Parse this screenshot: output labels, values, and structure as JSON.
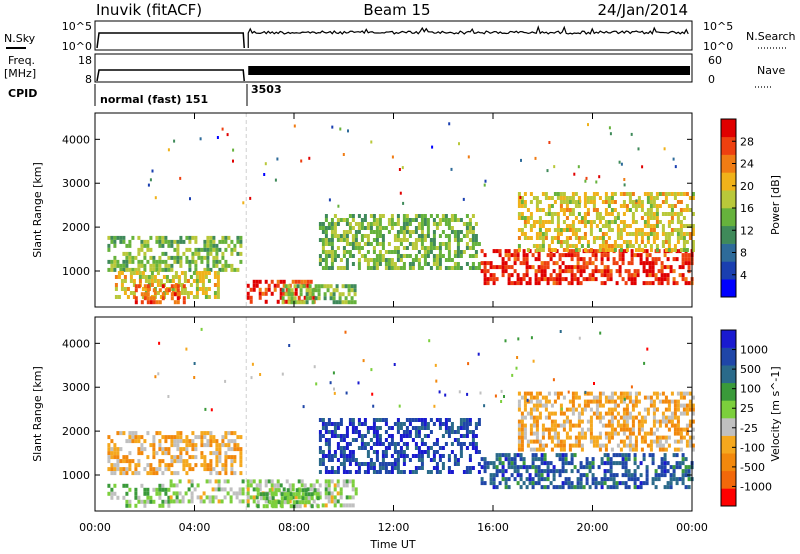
{
  "header": {
    "station": "Inuvik (fitACF)",
    "beam": "Beam 15",
    "date": "24/Jan/2014"
  },
  "top_panels": {
    "nsky_label": "N.Sky",
    "nsky_ticks": [
      "10^5",
      "10^0"
    ],
    "nsearch_label": "N.Search",
    "nsearch_ticks": [
      "10^5",
      "10^0"
    ],
    "freq_label": "Freq.",
    "freq_unit": "[MHz]",
    "freq_ticks": [
      "18",
      "8"
    ],
    "nave_label": "Nave",
    "nave_ticks": [
      "60",
      "0"
    ],
    "cpid_label": "CPID",
    "cpid_segments": [
      {
        "start_h": 0.0,
        "end_h": 6.08,
        "label": "normal (fast) 151"
      },
      {
        "start_h": 6.08,
        "end_h": 24.0,
        "label": "3503"
      }
    ]
  },
  "colors": {
    "power": [
      "#0000ff",
      "#1a3fb0",
      "#2e6b9a",
      "#3f8a5a",
      "#66b23c",
      "#b9c83a",
      "#f0b21a",
      "#f07c14",
      "#ee4010",
      "#e00000"
    ],
    "velocity": [
      "#ff0000",
      "#f2680a",
      "#f2880c",
      "#f5a81e",
      "#c0c0c0",
      "#7ccf3c",
      "#3a9a3a",
      "#2a6a8a",
      "#1f46a8",
      "#1a1ad0"
    ]
  },
  "chart_data": [
    {
      "type": "heatmap",
      "title": "",
      "xlabel": "Time UT",
      "ylabel": "Slant Range [km]",
      "xlim_h": [
        0,
        24
      ],
      "ylim": [
        180,
        4600
      ],
      "x_ticks": [
        "00:00",
        "04:00",
        "08:00",
        "12:00",
        "16:00",
        "20:00",
        "00:00"
      ],
      "y_ticks": [
        1000,
        2000,
        3000,
        4000
      ],
      "colorbar": {
        "label": "Power [dB]",
        "ticks": [
          "28",
          "24",
          "20",
          "16",
          "12",
          "8",
          "4"
        ],
        "range": [
          0,
          30
        ]
      },
      "regions": [
        {
          "t0": 0.5,
          "t1": 5.9,
          "r0": 1000,
          "r1": 1800,
          "value": 14
        },
        {
          "t0": 0.8,
          "t1": 5.0,
          "r0": 400,
          "r1": 1000,
          "value": 18
        },
        {
          "t0": 1.6,
          "t1": 3.6,
          "r0": 300,
          "r1": 700,
          "value": 25
        },
        {
          "t0": 6.1,
          "t1": 8.8,
          "r0": 300,
          "r1": 800,
          "value": 26
        },
        {
          "t0": 7.5,
          "t1": 10.5,
          "r0": 300,
          "r1": 700,
          "value": 14
        },
        {
          "t0": 9.0,
          "t1": 15.5,
          "r0": 1100,
          "r1": 2300,
          "value": 14
        },
        {
          "t0": 15.5,
          "t1": 24.0,
          "r0": 700,
          "r1": 1500,
          "value": 27
        },
        {
          "t0": 17.0,
          "t1": 24.0,
          "r0": 1500,
          "r1": 2800,
          "value": 18
        }
      ]
    },
    {
      "type": "heatmap",
      "title": "",
      "xlabel": "Time UT",
      "ylabel": "Slant Range [km]",
      "xlim_h": [
        0,
        24
      ],
      "ylim": [
        180,
        4600
      ],
      "x_ticks": [
        "00:00",
        "04:00",
        "08:00",
        "12:00",
        "16:00",
        "20:00",
        "00:00"
      ],
      "y_ticks": [
        1000,
        2000,
        3000,
        4000
      ],
      "colorbar": {
        "label": "Velocity [m s^-1]",
        "ticks": [
          "1000",
          "500",
          "100",
          "25",
          "-25",
          "-100",
          "-500",
          "-1000"
        ],
        "range": [
          -1000,
          1000
        ]
      },
      "regions": [
        {
          "t0": 0.5,
          "t1": 5.9,
          "r0": 1000,
          "r1": 2000,
          "value": -300
        },
        {
          "t0": 0.5,
          "t1": 3.0,
          "r0": 300,
          "r1": 800,
          "value": 150
        },
        {
          "t0": 3.0,
          "t1": 6.0,
          "r0": 400,
          "r1": 900,
          "value": 0
        },
        {
          "t0": 6.1,
          "t1": 10.5,
          "r0": 300,
          "r1": 900,
          "value": 0
        },
        {
          "t0": 6.5,
          "t1": 9.0,
          "r0": 300,
          "r1": 700,
          "value": 150
        },
        {
          "t0": 9.0,
          "t1": 15.5,
          "r0": 1100,
          "r1": 2300,
          "value": 700
        },
        {
          "t0": 15.5,
          "t1": 24.0,
          "r0": 700,
          "r1": 1500,
          "value": 600
        },
        {
          "t0": 17.0,
          "t1": 24.0,
          "r0": 1600,
          "r1": 2900,
          "value": -300
        }
      ]
    }
  ]
}
